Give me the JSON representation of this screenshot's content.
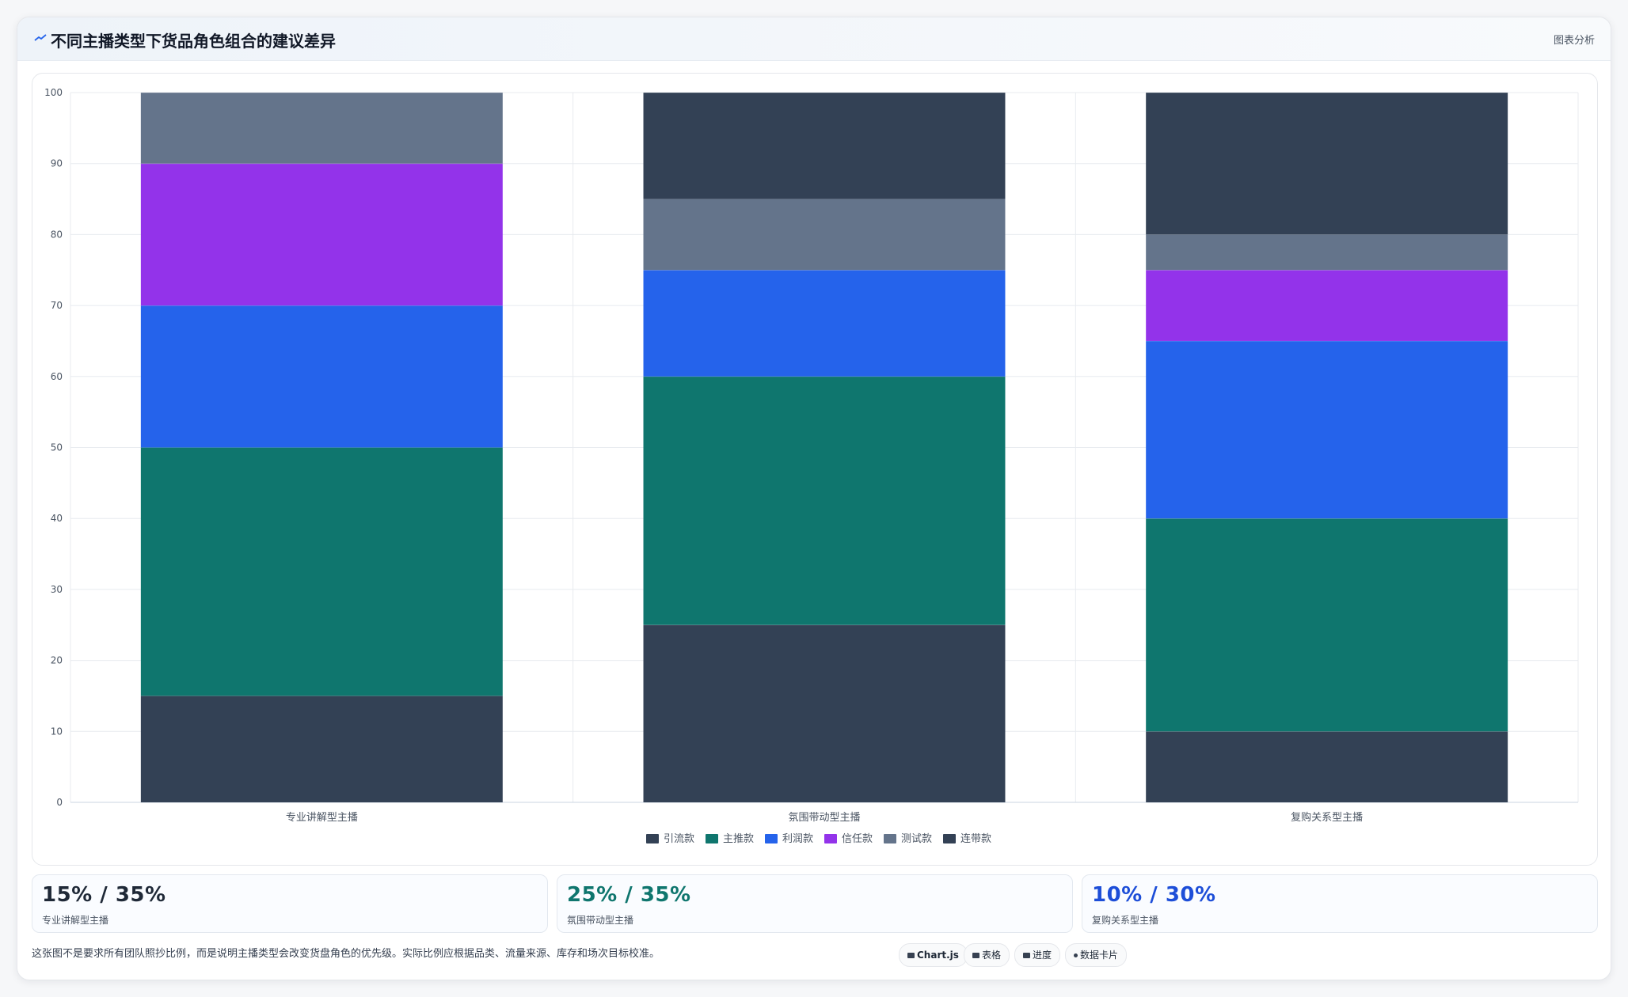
{
  "header": {
    "title": "不同主播类型下货品角色组合的建议差异",
    "link": "图表分析",
    "icon": "chart-line-icon"
  },
  "chart_data": {
    "type": "bar",
    "stacked": true,
    "categories": [
      "专业讲解型主播",
      "氛围带动型主播",
      "复购关系型主播"
    ],
    "ylim": [
      0,
      100
    ],
    "yticks": [
      0,
      10,
      20,
      30,
      40,
      50,
      60,
      70,
      80,
      90,
      100
    ],
    "grid": true,
    "legend_position": "bottom",
    "series": [
      {
        "name": "引流款",
        "color": "#334155",
        "values": [
          15,
          25,
          10
        ]
      },
      {
        "name": "主推款",
        "color": "#0f766e",
        "values": [
          35,
          35,
          30
        ]
      },
      {
        "name": "利润款",
        "color": "#2563eb",
        "values": [
          20,
          15,
          25
        ]
      },
      {
        "name": "信任款",
        "color": "#9333ea",
        "values": [
          20,
          0,
          10
        ]
      },
      {
        "name": "测试款",
        "color": "#64748b",
        "values": [
          10,
          10,
          5
        ]
      },
      {
        "name": "连带款",
        "color": "#334155",
        "values": [
          0,
          15,
          20
        ]
      }
    ]
  },
  "stats": [
    {
      "value": "15% / 35%",
      "label": "专业讲解型主播",
      "color": "#1f2937"
    },
    {
      "value": "25% / 35%",
      "label": "氛围带动型主播",
      "color": "#0f766e"
    },
    {
      "value": "10% / 30%",
      "label": "复购关系型主播",
      "color": "#1d4ed8"
    }
  ],
  "note": "这张图不是要求所有团队照抄比例，而是说明主播类型会改变货盘角色的优先级。实际比例应根据品类、流量来源、库存和场次目标校准。",
  "tags": [
    {
      "label": "Chart.js",
      "icon": "chart-icon"
    },
    {
      "label": "表格",
      "icon": "table-icon"
    },
    {
      "label": "进度",
      "icon": "progress-icon"
    },
    {
      "label": "数据卡片",
      "icon": "card-icon"
    }
  ]
}
